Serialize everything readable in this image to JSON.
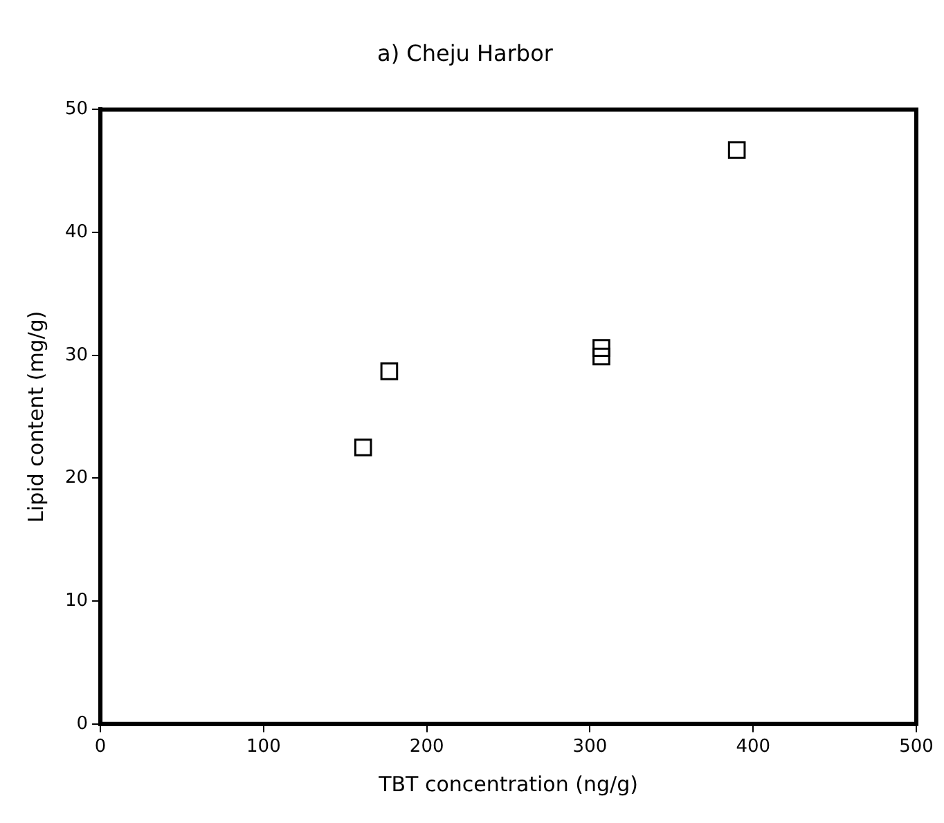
{
  "chart_data": {
    "type": "scatter",
    "title": "a) Cheju Harbor",
    "xlabel": "TBT concentration (ng/g)",
    "ylabel": "Lipid content (mg/g)",
    "x": [
      161,
      177,
      307,
      307,
      390
    ],
    "values": [
      22.5,
      28.7,
      29.9,
      30.6,
      46.7
    ],
    "color": "#000000",
    "marker": "square",
    "xlim": [
      0,
      500
    ],
    "xticks": [
      0,
      100,
      200,
      300,
      400,
      500
    ],
    "ylim": [
      0,
      50
    ],
    "yticks": [
      0,
      10,
      20,
      30,
      40,
      50
    ],
    "grid": false,
    "legend": false
  }
}
